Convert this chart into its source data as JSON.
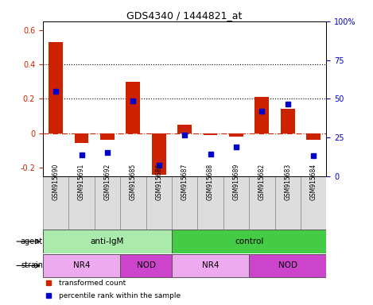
{
  "title": "GDS4340 / 1444821_at",
  "samples": [
    "GSM915690",
    "GSM915691",
    "GSM915692",
    "GSM915685",
    "GSM915686",
    "GSM915687",
    "GSM915688",
    "GSM915689",
    "GSM915682",
    "GSM915683",
    "GSM915684"
  ],
  "bar_values": [
    0.53,
    -0.055,
    -0.04,
    0.3,
    -0.24,
    0.05,
    -0.01,
    -0.02,
    0.21,
    0.14,
    -0.04
  ],
  "dot_values": [
    55,
    13.5,
    15.5,
    48.5,
    7.0,
    26.5,
    14.5,
    19.0,
    42.0,
    46.5,
    13.0
  ],
  "bar_color": "#cc2200",
  "dot_color": "#0000cc",
  "ylim_left": [
    -0.25,
    0.65
  ],
  "ylim_right": [
    0,
    100
  ],
  "yticks_left": [
    -0.2,
    0.0,
    0.2,
    0.4,
    0.6
  ],
  "ytick_labels_left": [
    "-0.2",
    "0",
    "0.2",
    "0.4",
    "0.6"
  ],
  "yticks_right": [
    0,
    25,
    50,
    75,
    100
  ],
  "ytick_labels_right": [
    "0",
    "25",
    "50",
    "75",
    "100%"
  ],
  "hlines": [
    0.2,
    0.4
  ],
  "agent_groups": [
    {
      "label": "anti-IgM",
      "start": 0,
      "end": 5,
      "color": "#aaeaaa"
    },
    {
      "label": "control",
      "start": 5,
      "end": 11,
      "color": "#44cc44"
    }
  ],
  "strain_groups": [
    {
      "label": "NR4",
      "start": 0,
      "end": 3,
      "color": "#eeaaee"
    },
    {
      "label": "NOD",
      "start": 3,
      "end": 5,
      "color": "#cc44cc"
    },
    {
      "label": "NR4",
      "start": 5,
      "end": 8,
      "color": "#eeaaee"
    },
    {
      "label": "NOD",
      "start": 8,
      "end": 11,
      "color": "#cc44cc"
    }
  ],
  "legend_items": [
    {
      "label": "transformed count",
      "color": "#cc2200"
    },
    {
      "label": "percentile rank within the sample",
      "color": "#0000cc"
    }
  ],
  "sample_bg": "#dddddd",
  "background_color": "#ffffff"
}
